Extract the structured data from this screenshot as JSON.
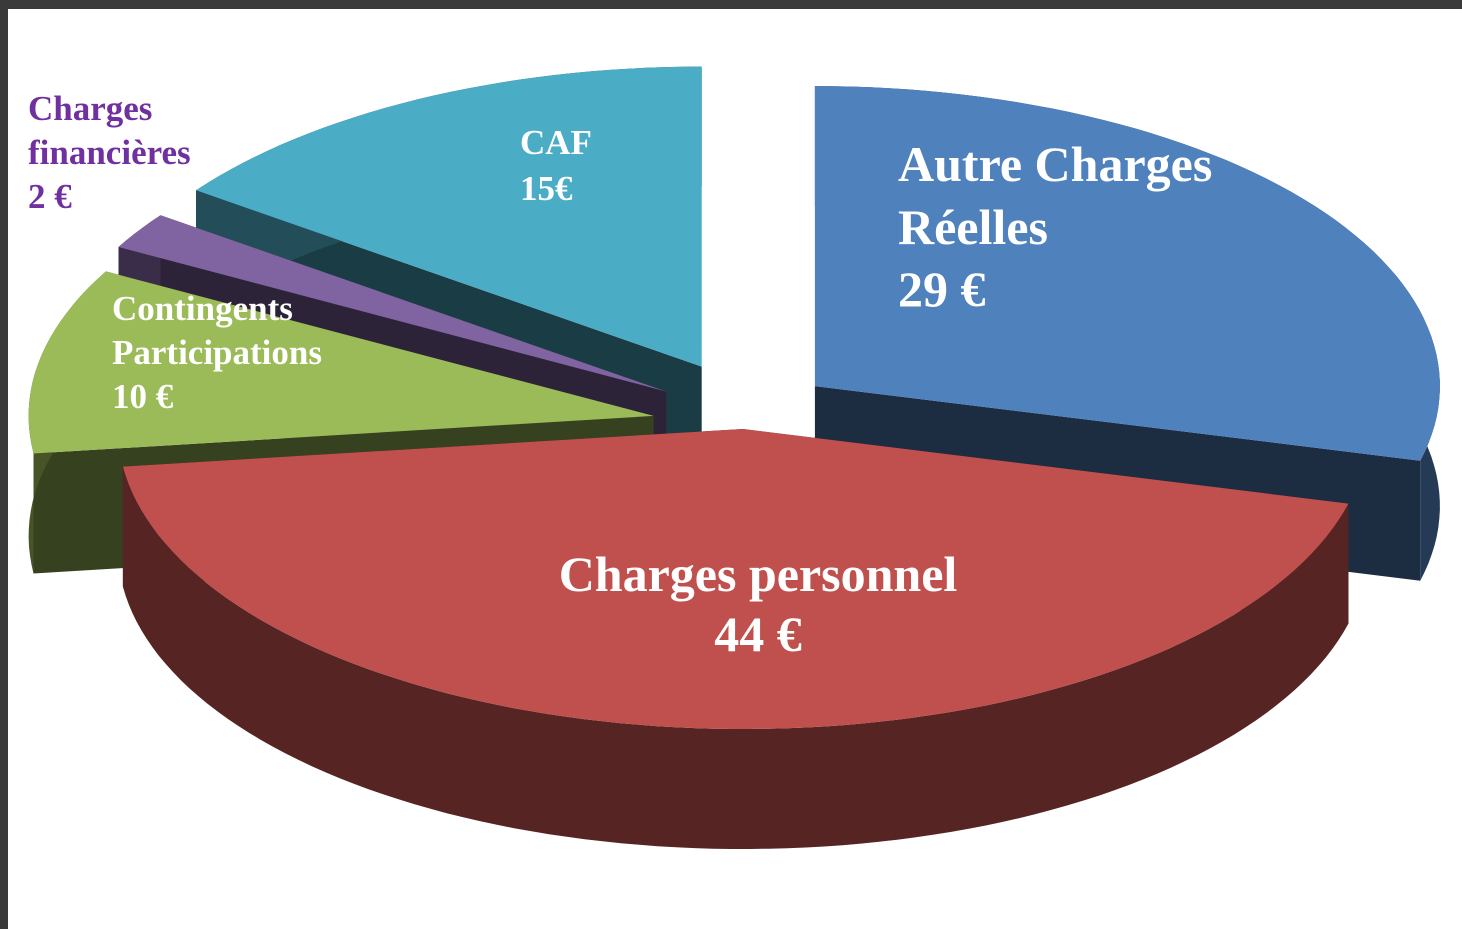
{
  "chart_data": {
    "type": "pie",
    "categories": [
      "Autre Charges Réelles",
      "Charges personnel",
      "Contingents Participations",
      "Charges financières",
      "CAF"
    ],
    "values": [
      29,
      44,
      10,
      2,
      15
    ],
    "value_labels": [
      "29 €",
      "44 €",
      "10 €",
      "2 €",
      "15€"
    ],
    "colors": [
      "#4f81bd",
      "#c0504d",
      "#9bbb59",
      "#8064a2",
      "#4bacc6"
    ]
  }
}
